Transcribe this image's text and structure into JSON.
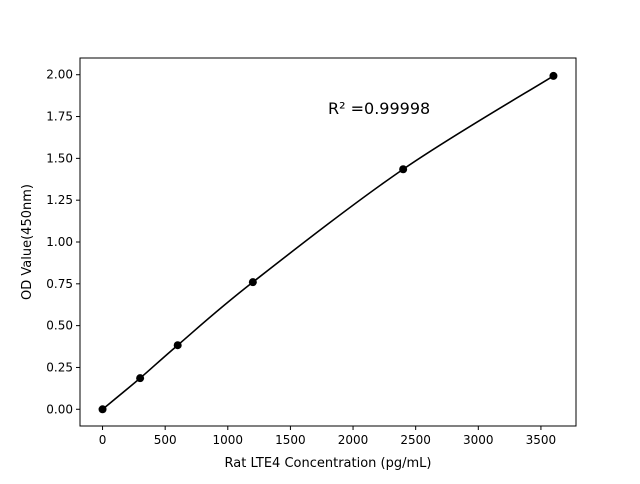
{
  "chart_data": {
    "type": "line",
    "title": "",
    "xlabel": "Rat LTE4 Concentration (pg/mL)",
    "ylabel": "OD Value(450nm)",
    "xlim": [
      -180,
      3780
    ],
    "ylim": [
      -0.1,
      2.1
    ],
    "xticks": [
      0,
      500,
      1000,
      1500,
      2000,
      2500,
      3000,
      3500
    ],
    "yticks": [
      "0.00",
      "0.25",
      "0.50",
      "0.75",
      "1.00",
      "1.25",
      "1.50",
      "1.75",
      "2.00"
    ],
    "grid": false,
    "series": [
      {
        "x": [
          0,
          300,
          600,
          1200,
          2400,
          3600
        ],
        "y": [
          0.0,
          0.186,
          0.383,
          0.76,
          1.435,
          1.993
        ],
        "color": "#000000",
        "marker": "circle"
      }
    ],
    "annotations": [
      {
        "text": "R² =0.99998",
        "x": 1800,
        "y": 1.8
      }
    ]
  }
}
